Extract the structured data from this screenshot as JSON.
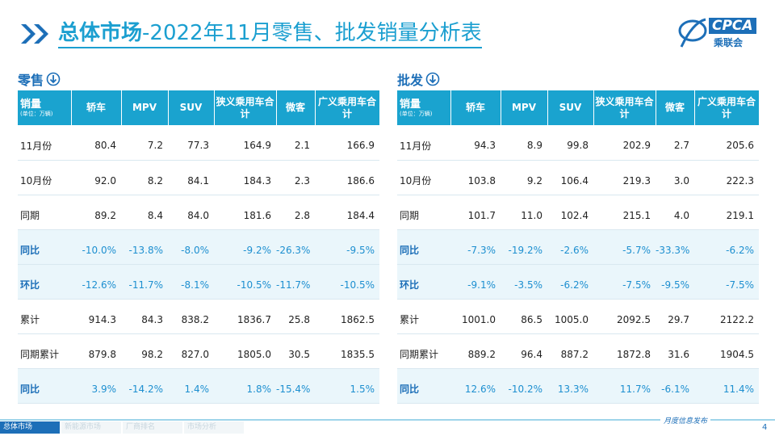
{
  "header": {
    "title_bold": "总体市场",
    "title_rest": "-2022年11月零售、批发销量分析表",
    "logo": "CPCA",
    "logo_sub": "乘联会"
  },
  "tables": [
    {
      "label": "零售",
      "unit_header": "销量",
      "unit_note": "(单位：万辆)",
      "columns": [
        "轿车",
        "MPV",
        "SUV",
        "狭义乘用车合计",
        "微客",
        "广义乘用车合计"
      ],
      "rows": [
        [
          "11月份",
          "80.4",
          "7.2",
          "77.3",
          "164.9",
          "2.1",
          "166.9"
        ],
        [
          "10月份",
          "92.0",
          "8.2",
          "84.1",
          "184.3",
          "2.3",
          "186.6"
        ],
        [
          "同期",
          "89.2",
          "8.4",
          "84.0",
          "181.6",
          "2.8",
          "184.4"
        ],
        [
          "同比",
          "-10.0%",
          "-13.8%",
          "-8.0%",
          "-9.2%",
          "-26.3%",
          "-9.5%"
        ],
        [
          "环比",
          "-12.6%",
          "-11.7%",
          "-8.1%",
          "-10.5%",
          "-11.7%",
          "-10.5%"
        ],
        [
          "累计",
          "914.3",
          "84.3",
          "838.2",
          "1836.7",
          "25.8",
          "1862.5"
        ],
        [
          "同期累计",
          "879.8",
          "98.2",
          "827.0",
          "1805.0",
          "30.5",
          "1835.5"
        ],
        [
          "同比",
          "3.9%",
          "-14.2%",
          "1.4%",
          "1.8%",
          "-15.4%",
          "1.5%"
        ]
      ]
    },
    {
      "label": "批发",
      "unit_header": "销量",
      "unit_note": "(单位：万辆)",
      "columns": [
        "轿车",
        "MPV",
        "SUV",
        "狭义乘用车合计",
        "微客",
        "广义乘用车合计"
      ],
      "rows": [
        [
          "11月份",
          "94.3",
          "8.9",
          "99.8",
          "202.9",
          "2.7",
          "205.6"
        ],
        [
          "10月份",
          "103.8",
          "9.2",
          "106.4",
          "219.3",
          "3.0",
          "222.3"
        ],
        [
          "同期",
          "101.7",
          "11.0",
          "102.4",
          "215.1",
          "4.0",
          "219.1"
        ],
        [
          "同比",
          "-7.3%",
          "-19.2%",
          "-2.6%",
          "-5.7%",
          "-33.3%",
          "-6.2%"
        ],
        [
          "环比",
          "-9.1%",
          "-3.5%",
          "-6.2%",
          "-7.5%",
          "-9.5%",
          "-7.5%"
        ],
        [
          "累计",
          "1001.0",
          "86.5",
          "1005.0",
          "2092.5",
          "29.7",
          "2122.2"
        ],
        [
          "同期累计",
          "889.2",
          "96.4",
          "887.2",
          "1872.8",
          "31.6",
          "1904.5"
        ],
        [
          "同比",
          "12.6%",
          "-10.2%",
          "13.3%",
          "11.7%",
          "-6.1%",
          "11.4%"
        ]
      ]
    }
  ],
  "footer": {
    "tabs": [
      "总体市场",
      "新能源市场",
      "厂商排名",
      "市场分析"
    ],
    "note": "月度信息发布",
    "page": "4"
  }
}
